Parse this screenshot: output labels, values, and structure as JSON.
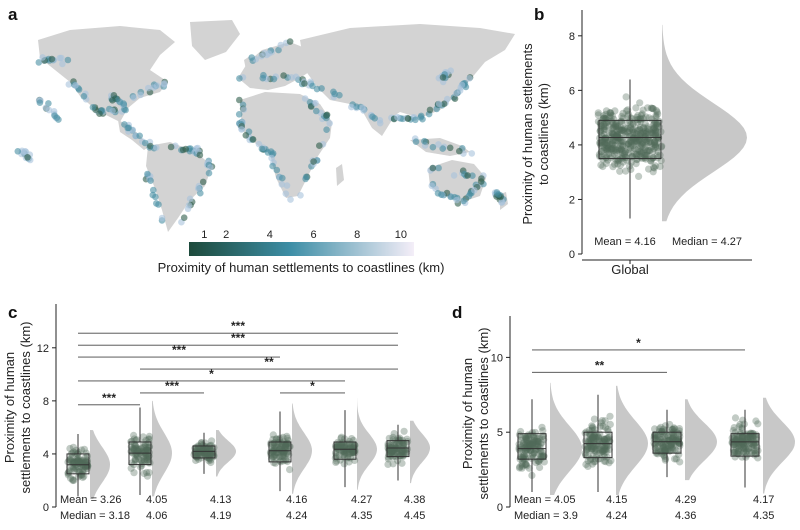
{
  "colors": {
    "land": "#d3d3d3",
    "dot_dark": "#2f5d4b",
    "dot_mid": "#4a90a4",
    "dot_light": "#a9c3dc",
    "violin": "#c8c8c8",
    "scatter": "#4f6b5a",
    "colorbar_start": "#1d4a3b",
    "colorbar_mid": "#3d8ea6",
    "colorbar_end": "#f4eef8"
  },
  "chart_data": [
    {
      "panel": "a",
      "type": "map",
      "colorbar_ticks": [
        "1",
        "2",
        "4",
        "6",
        "8",
        "10"
      ],
      "colorbar_label": "Proximity of human settlements to coastlines (km)"
    },
    {
      "panel": "b",
      "type": "raincloud",
      "ylabel": "Proximity of human settlements\nto coastlines (km)",
      "yticks": [
        "0",
        "2",
        "4",
        "6",
        "8"
      ],
      "ylim": [
        0,
        8.8
      ],
      "groups": [
        {
          "name": "Global",
          "q1": 3.5,
          "median": 4.27,
          "q3": 4.9,
          "whisker_low": 1.3,
          "whisker_high": 6.4,
          "min": 1.2,
          "max": 8.4,
          "mean": "Mean = 4.16",
          "median_label": "Median = 4.27"
        }
      ]
    },
    {
      "panel": "c",
      "type": "raincloud",
      "ylabel": "Proximity of human\nsettlements to coastlines (km)",
      "yticks": [
        "0",
        "4",
        "8",
        "12"
      ],
      "ylim": [
        0,
        15
      ],
      "groups": [
        {
          "mean": "Mean = 3.26",
          "median_label": "Median = 3.18",
          "q1": 2.5,
          "median": 3.18,
          "q3": 4.0,
          "whisker_low": 0.8,
          "whisker_high": 5.5,
          "min": 0.6,
          "max": 5.8
        },
        {
          "mean": "4.05",
          "median_label": "4.06",
          "q1": 3.2,
          "median": 4.06,
          "q3": 4.9,
          "whisker_low": 0.9,
          "whisker_high": 7.5,
          "min": 0.8,
          "max": 8.0
        },
        {
          "mean": "4.13",
          "median_label": "4.19",
          "q1": 3.7,
          "median": 4.19,
          "q3": 4.6,
          "whisker_low": 2.5,
          "whisker_high": 5.6,
          "min": 2.3,
          "max": 5.8
        },
        {
          "mean": "4.16",
          "median_label": "4.24",
          "q1": 3.4,
          "median": 4.24,
          "q3": 4.9,
          "whisker_low": 1.2,
          "whisker_high": 7.2,
          "min": 1.0,
          "max": 7.8
        },
        {
          "mean": "4.27",
          "median_label": "4.35",
          "q1": 3.6,
          "median": 4.35,
          "q3": 4.9,
          "whisker_low": 1.5,
          "whisker_high": 7.3,
          "min": 1.3,
          "max": 8.2
        },
        {
          "mean": "4.38",
          "median_label": "4.45",
          "q1": 3.8,
          "median": 4.45,
          "q3": 5.0,
          "whisker_low": 2.0,
          "whisker_high": 6.2,
          "min": 1.8,
          "max": 6.5
        }
      ],
      "significance": [
        {
          "from": 0,
          "to": 5,
          "y": 13.1,
          "label": "***"
        },
        {
          "from": 0,
          "to": 5,
          "y": 12.2,
          "label": "***"
        },
        {
          "from": 0,
          "to": 3,
          "y": 11.3,
          "label": "***"
        },
        {
          "from": 1,
          "to": 5,
          "y": 10.4,
          "label": "**"
        },
        {
          "from": 0,
          "to": 4,
          "y": 9.5,
          "label": "*"
        },
        {
          "from": 1,
          "to": 2,
          "y": 8.6,
          "label": "***"
        },
        {
          "from": 3,
          "to": 4,
          "y": 8.6,
          "label": "*"
        },
        {
          "from": 0,
          "to": 1,
          "y": 7.7,
          "label": "***"
        }
      ]
    },
    {
      "panel": "d",
      "type": "raincloud",
      "ylabel": "Proximity of human\nsettlements to coastlines (km)",
      "yticks": [
        "0",
        "5",
        "10"
      ],
      "ylim": [
        0,
        12.5
      ],
      "groups": [
        {
          "mean": "Mean = 4.05",
          "median_label": "Median = 3.9",
          "q1": 3.2,
          "median": 3.9,
          "q3": 4.9,
          "whisker_low": 1.0,
          "whisker_high": 7.2,
          "min": 0.8,
          "max": 8.3
        },
        {
          "mean": "4.15",
          "median_label": "4.24",
          "q1": 3.3,
          "median": 4.24,
          "q3": 5.0,
          "whisker_low": 1.0,
          "whisker_high": 7.5,
          "min": 0.8,
          "max": 8.1
        },
        {
          "mean": "4.29",
          "median_label": "4.36",
          "q1": 3.6,
          "median": 4.36,
          "q3": 5.0,
          "whisker_low": 2.0,
          "whisker_high": 6.5,
          "min": 1.8,
          "max": 7.2
        },
        {
          "mean": "4.17",
          "median_label": "4.35",
          "q1": 3.4,
          "median": 4.35,
          "q3": 4.9,
          "whisker_low": 1.3,
          "whisker_high": 6.5,
          "min": 0.9,
          "max": 7.3
        }
      ],
      "significance": [
        {
          "from": 0,
          "to": 3,
          "y": 10.5,
          "label": "*"
        },
        {
          "from": 0,
          "to": 2,
          "y": 9.0,
          "label": "**"
        }
      ]
    }
  ],
  "panel_letters": {
    "a": "a",
    "b": "b",
    "c": "c",
    "d": "d"
  }
}
